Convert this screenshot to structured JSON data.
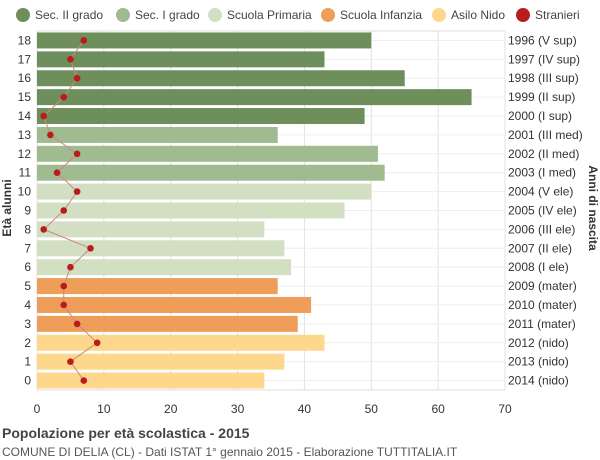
{
  "title": "Popolazione per età scolastica - 2015",
  "subtitle": "COMUNE DI DELIA (CL) - Dati ISTAT 1° gennaio 2015 - Elaborazione TUTTITALIA.IT",
  "colors": {
    "Sec. II grado": "#6e8f5b",
    "Sec. I grado": "#9fbb8f",
    "Scuola Primaria": "#d3dfc3",
    "Scuola Infanzia": "#ee9e58",
    "Asilo Nido": "#fdd88c",
    "Stranieri": "#b91c1c"
  },
  "chart_data": {
    "type": "bar",
    "orientation": "horizontal",
    "ylabel": "Età alunni",
    "ylabel_right": "Anni di nascita",
    "xlim": [
      0,
      70
    ],
    "xticks": [
      0,
      10,
      20,
      30,
      40,
      50,
      60,
      70
    ],
    "grid": true,
    "legend": [
      "Sec. II grado",
      "Sec. I grado",
      "Scuola Primaria",
      "Scuola Infanzia",
      "Asilo Nido",
      "Stranieri"
    ],
    "legend_position": "top",
    "categories": [
      "18",
      "17",
      "16",
      "15",
      "14",
      "13",
      "12",
      "11",
      "10",
      "9",
      "8",
      "7",
      "6",
      "5",
      "4",
      "3",
      "2",
      "1",
      "0"
    ],
    "birth_years": [
      "1996 (V sup)",
      "1997 (IV sup)",
      "1998 (III sup)",
      "1999 (II sup)",
      "2000 (I sup)",
      "2001 (III med)",
      "2002 (II med)",
      "2003 (I med)",
      "2004 (V ele)",
      "2005 (IV ele)",
      "2006 (III ele)",
      "2007 (II ele)",
      "2008 (I ele)",
      "2009 (mater)",
      "2010 (mater)",
      "2011 (mater)",
      "2012 (nido)",
      "2013 (nido)",
      "2014 (nido)"
    ],
    "groups": [
      "Sec. II grado",
      "Sec. II grado",
      "Sec. II grado",
      "Sec. II grado",
      "Sec. II grado",
      "Sec. I grado",
      "Sec. I grado",
      "Sec. I grado",
      "Scuola Primaria",
      "Scuola Primaria",
      "Scuola Primaria",
      "Scuola Primaria",
      "Scuola Primaria",
      "Scuola Infanzia",
      "Scuola Infanzia",
      "Scuola Infanzia",
      "Asilo Nido",
      "Asilo Nido",
      "Asilo Nido"
    ],
    "values": [
      50,
      43,
      55,
      65,
      49,
      36,
      51,
      52,
      50,
      46,
      34,
      37,
      38,
      36,
      41,
      39,
      43,
      37,
      34
    ],
    "stranieri": [
      7,
      5,
      6,
      4,
      1,
      2,
      6,
      3,
      6,
      4,
      1,
      8,
      5,
      4,
      4,
      6,
      9,
      5,
      7
    ]
  }
}
